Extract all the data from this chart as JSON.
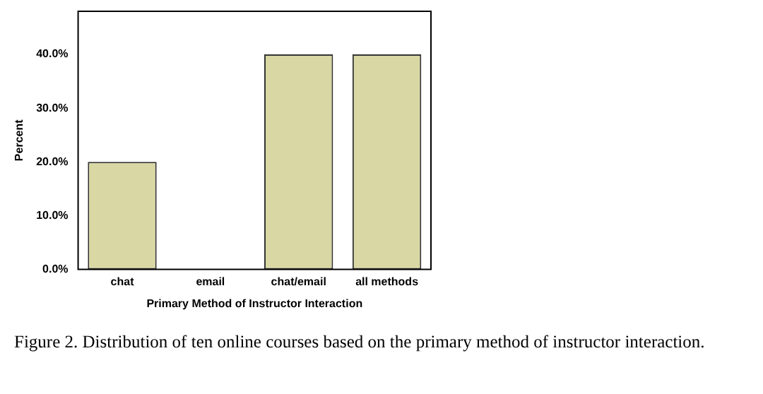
{
  "chart_data": {
    "type": "bar",
    "xlabel": "Primary Method of Instructor Interaction",
    "ylabel": "Percent",
    "categories": [
      "chat",
      "email",
      "chat/email",
      "all methods"
    ],
    "values": [
      20,
      0,
      40,
      40
    ],
    "color": "#d9d7a3",
    "ylim": [
      0,
      48
    ],
    "yticks": [
      {
        "value": 0,
        "label": "0.0%"
      },
      {
        "value": 10,
        "label": "10.0%"
      },
      {
        "value": 20,
        "label": "20.0%"
      },
      {
        "value": 30,
        "label": "30.0%"
      },
      {
        "value": 40,
        "label": "40.0%"
      }
    ],
    "grid": false,
    "legend": false,
    "annotations": [
      "Figure 2. Distribution of ten online courses based on the primary method of instructor interaction."
    ]
  }
}
